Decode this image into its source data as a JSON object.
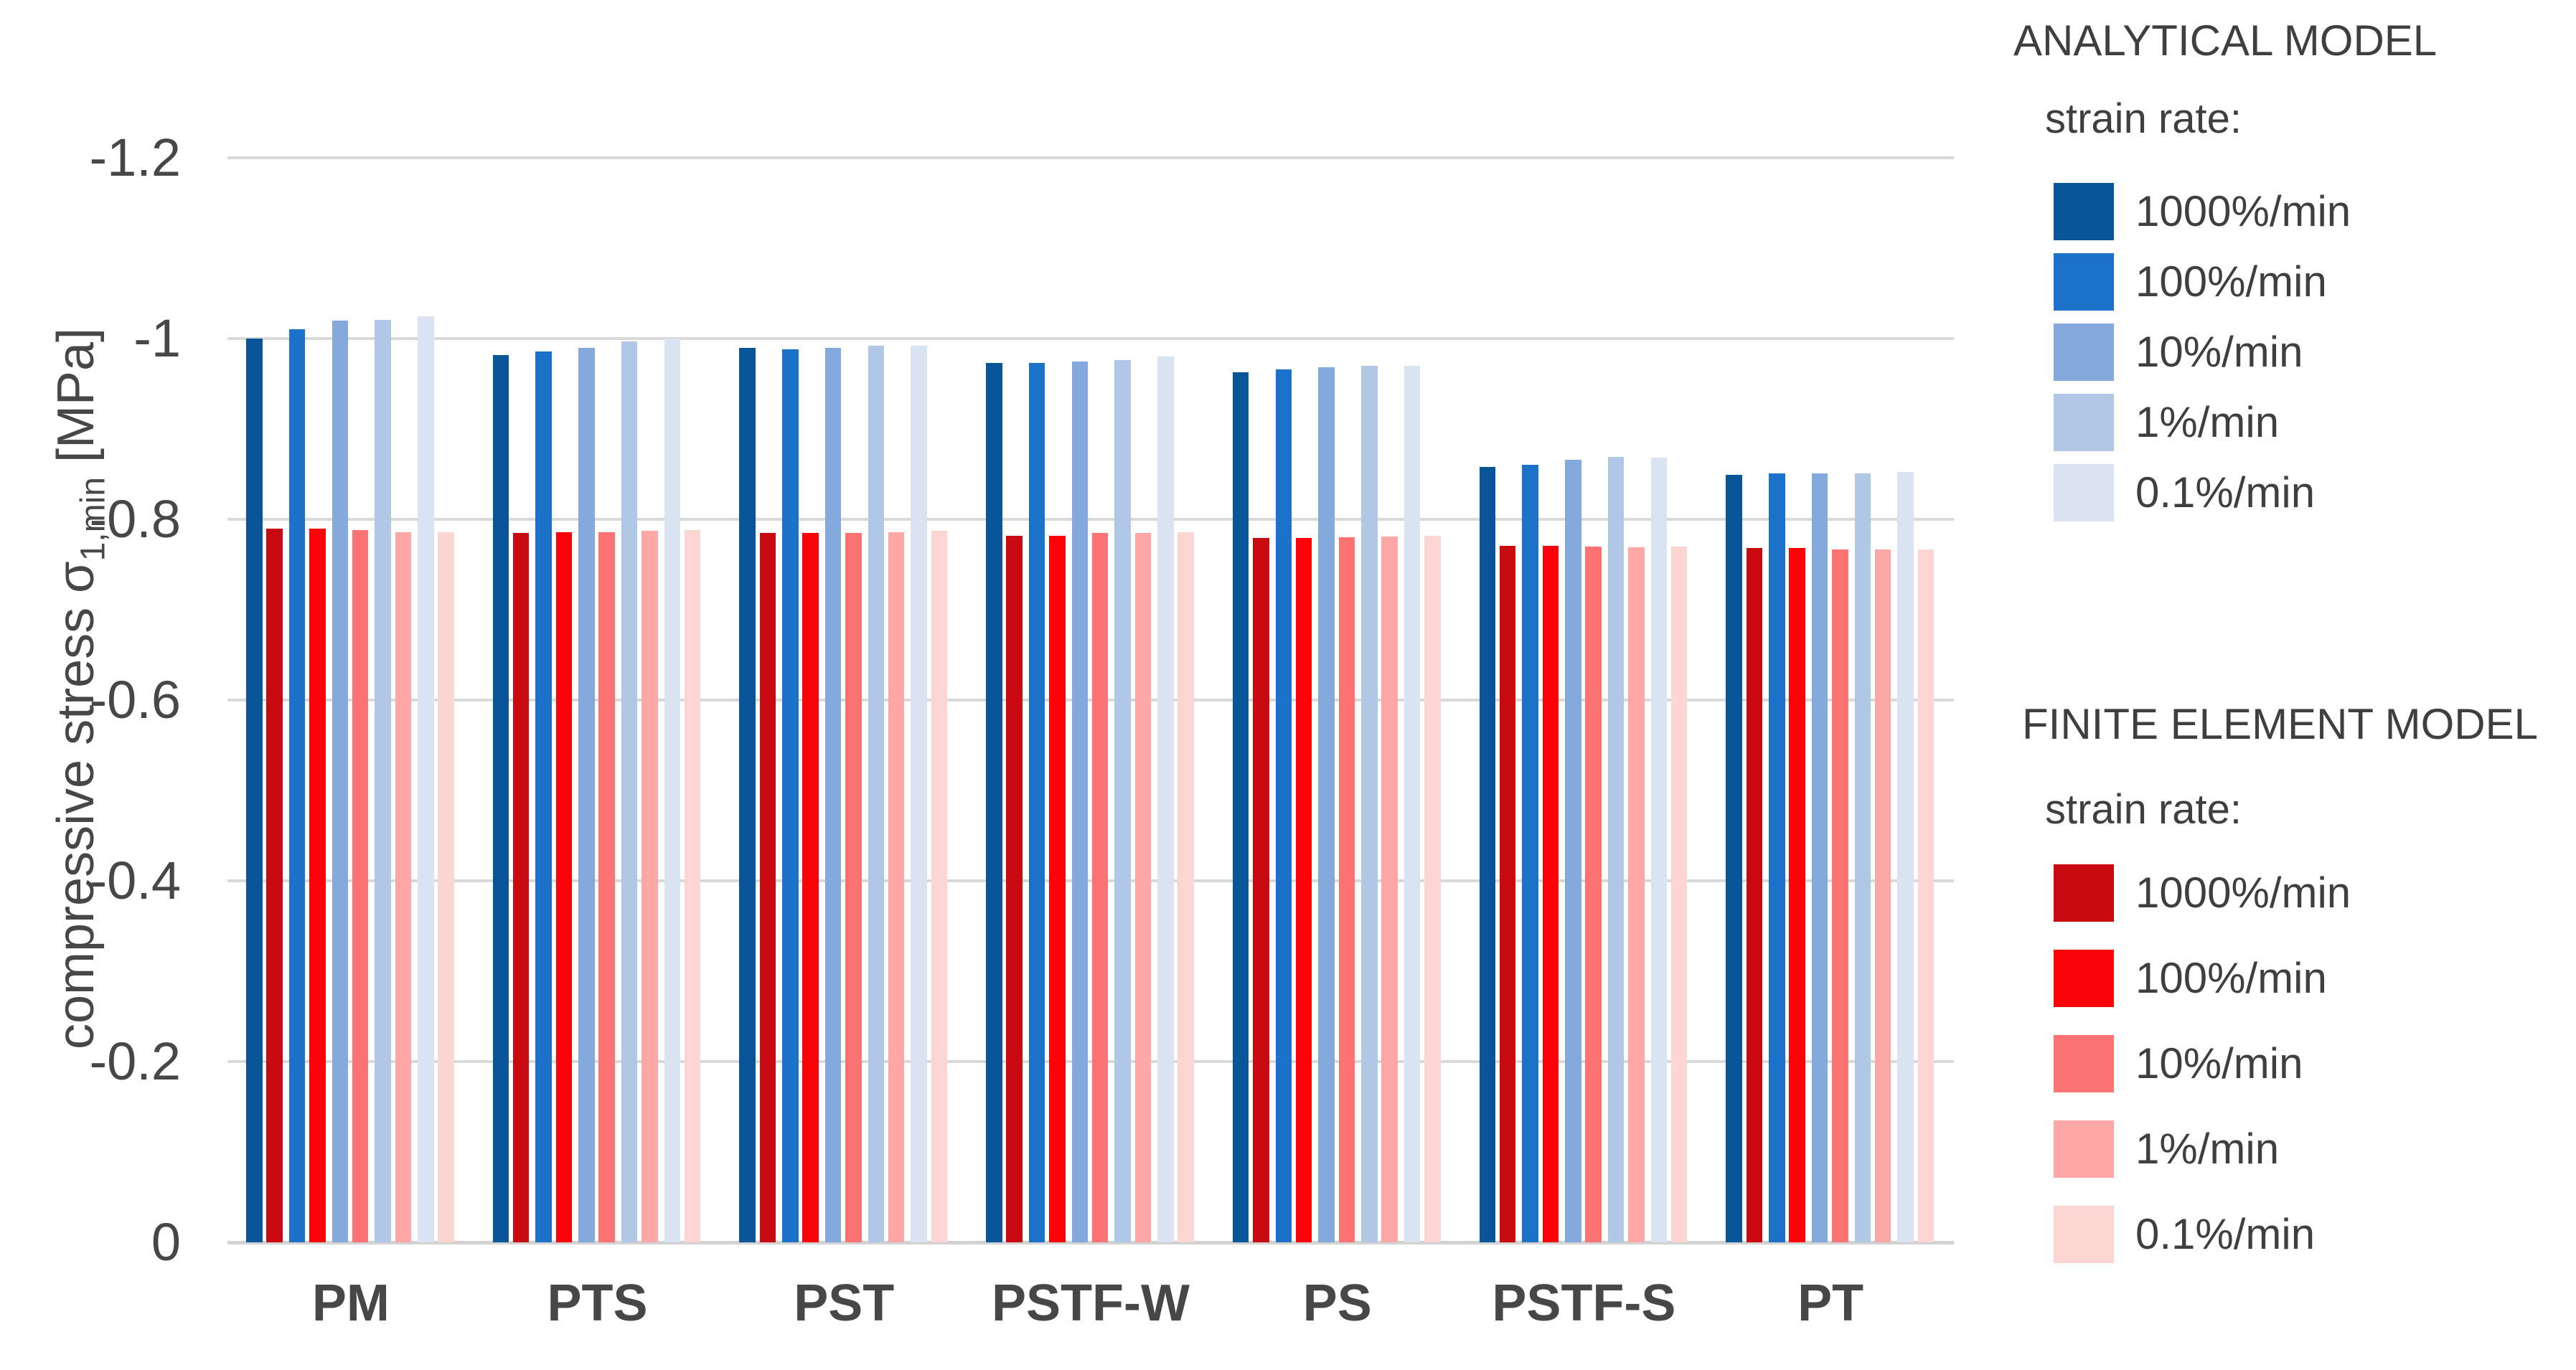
{
  "chart_data": {
    "type": "bar",
    "title": "",
    "ylabel": "compressive stress σ1,min [MPa]",
    "ylabel_parts": {
      "prefix": "compressive stress σ",
      "subscript": "1,min",
      "suffix": " [MPa]"
    },
    "xlabel": "",
    "grid": "horizontal",
    "y_axis": {
      "min": -1.2,
      "max": 0,
      "inverted_downward": true,
      "ticks": [
        -1.2,
        -1,
        -0.8,
        -0.6,
        -0.4,
        -0.2,
        0
      ],
      "tick_labels": [
        "-1.2",
        "-1",
        "-0.8",
        "-0.6",
        "-0.4",
        "-0.2",
        "0"
      ]
    },
    "categories": [
      "PM",
      "PTS",
      "PST",
      "PSTF-W",
      "PS",
      "PSTF-S",
      "PT"
    ],
    "strain_rates": [
      "1000%/min",
      "100%/min",
      "10%/min",
      "1%/min",
      "0.1%/min"
    ],
    "models": [
      {
        "name": "ANALYTICAL MODEL",
        "subtitle": "strain rate:",
        "colors": [
          "#0a5499",
          "#1b72c8",
          "#84aadd",
          "#b0c7e6",
          "#d9e3f2"
        ],
        "series": [
          {
            "rate": "1000%/min",
            "values": [
              -1.0,
              -0.982,
              -0.99,
              -0.973,
              -0.963,
              -0.858,
              -0.849
            ]
          },
          {
            "rate": "100%/min",
            "values": [
              -1.01,
              -0.986,
              -0.988,
              -0.973,
              -0.966,
              -0.86,
              -0.851
            ]
          },
          {
            "rate": "10%/min",
            "values": [
              -1.02,
              -0.99,
              -0.99,
              -0.975,
              -0.968,
              -0.866,
              -0.851
            ]
          },
          {
            "rate": "1%/min",
            "values": [
              -1.021,
              -0.997,
              -0.992,
              -0.976,
              -0.97,
              -0.869,
              -0.851
            ]
          },
          {
            "rate": "0.1%/min",
            "values": [
              -1.025,
              -1.0,
              -0.992,
              -0.98,
              -0.97,
              -0.868,
              -0.852
            ]
          }
        ]
      },
      {
        "name": "FINITE ELEMENT MODEL",
        "subtitle": "strain rate:",
        "colors": [
          "#c90b11",
          "#fb0409",
          "#fd7373",
          "#fda8a6",
          "#fdd5d3"
        ],
        "series": [
          {
            "rate": "1000%/min",
            "values": [
              -0.79,
              -0.785,
              -0.785,
              -0.782,
              -0.779,
              -0.771,
              -0.768
            ]
          },
          {
            "rate": "100%/min",
            "values": [
              -0.79,
              -0.786,
              -0.785,
              -0.782,
              -0.779,
              -0.771,
              -0.768
            ]
          },
          {
            "rate": "10%/min",
            "values": [
              -0.788,
              -0.786,
              -0.785,
              -0.785,
              -0.78,
              -0.77,
              -0.767
            ]
          },
          {
            "rate": "1%/min",
            "values": [
              -0.786,
              -0.787,
              -0.786,
              -0.785,
              -0.781,
              -0.769,
              -0.767
            ]
          },
          {
            "rate": "0.1%/min",
            "values": [
              -0.786,
              -0.788,
              -0.787,
              -0.786,
              -0.782,
              -0.77,
              -0.767
            ]
          }
        ]
      }
    ],
    "legend_position": "right",
    "gridline_color": "#d9d9d9",
    "text_color": "#3f3f3f"
  }
}
